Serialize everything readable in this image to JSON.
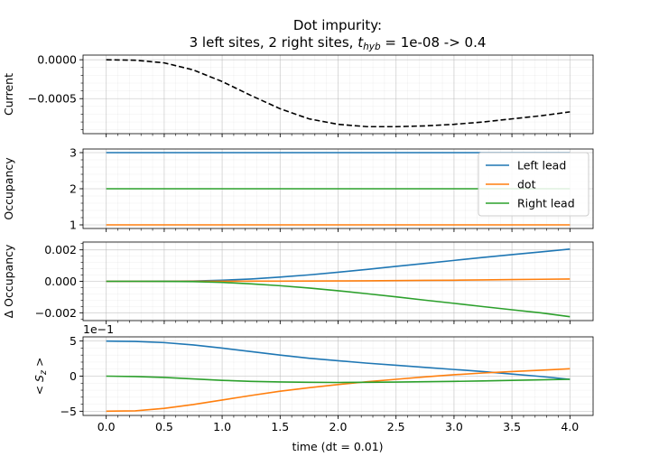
{
  "chart_data": {
    "type": "line",
    "title_line1": "Dot impurity:",
    "title_line2_prefix": "3 left sites, 2 right sites, ",
    "title_var": "t",
    "title_sub": "hyb",
    "title_line2_suffix": " = 1e-08 -> 0.4",
    "xlabel": "time (dt = 0.01)",
    "xlim": [
      -0.2,
      4.2
    ],
    "x_ticks": [
      0.0,
      0.5,
      1.0,
      1.5,
      2.0,
      2.5,
      3.0,
      3.5,
      4.0
    ],
    "x_tick_labels": [
      "0.0",
      "0.5",
      "1.0",
      "1.5",
      "2.0",
      "2.5",
      "3.0",
      "3.5",
      "4.0"
    ],
    "x": [
      0.0,
      0.25,
      0.5,
      0.75,
      1.0,
      1.25,
      1.5,
      1.75,
      2.0,
      2.25,
      2.5,
      2.75,
      3.0,
      3.25,
      3.5,
      3.75,
      4.0
    ],
    "colors": {
      "current": "#000000",
      "left": "#1f77b4",
      "dot": "#ff7f0e",
      "right": "#2ca02c"
    },
    "legend": {
      "placement": "upper-right of occupancy panel",
      "entries": [
        "Left lead",
        "dot",
        "Right lead"
      ]
    },
    "panels": [
      {
        "id": "current",
        "ylabel": "Current",
        "ylim": [
          -0.00095,
          6e-05
        ],
        "y_ticks": [
          0.0,
          -0.0005
        ],
        "y_tick_labels": [
          "0.0000",
          "−0.0005"
        ],
        "series": [
          {
            "key": "current",
            "style": "dashed",
            "values": [
              0.0,
              -6e-06,
              -4e-05,
              -0.00013,
              -0.00028,
              -0.00046,
              -0.00063,
              -0.00076,
              -0.00083,
              -0.00086,
              -0.00086,
              -0.00085,
              -0.00083,
              -0.0008,
              -0.00076,
              -0.00072,
              -0.00067
            ]
          }
        ]
      },
      {
        "id": "occupancy",
        "ylabel": "Occupancy",
        "ylim": [
          0.9,
          3.1
        ],
        "y_ticks": [
          1,
          2,
          3
        ],
        "y_tick_labels": [
          "1",
          "2",
          "3"
        ],
        "series": [
          {
            "key": "left",
            "name": "Left lead",
            "values": [
              3,
              3,
              3,
              3,
              3,
              3,
              3,
              3,
              3,
              3,
              3,
              3,
              3,
              3,
              3,
              3,
              3
            ]
          },
          {
            "key": "dot",
            "name": "dot",
            "values": [
              1,
              1,
              1,
              1,
              1,
              1,
              1,
              1,
              1,
              1,
              1,
              1,
              1,
              1,
              1,
              1,
              1
            ]
          },
          {
            "key": "right",
            "name": "Right lead",
            "values": [
              2,
              2,
              2,
              2,
              2,
              2,
              2,
              2,
              2,
              2,
              2,
              2,
              2,
              2,
              2,
              2,
              2
            ]
          }
        ]
      },
      {
        "id": "delta",
        "ylabel": "Δ Occupancy",
        "ylim": [
          -0.0025,
          0.0025
        ],
        "y_ticks": [
          0.002,
          0.0,
          -0.002
        ],
        "y_tick_labels": [
          "0.002",
          "0.000",
          "−0.002"
        ],
        "series": [
          {
            "key": "left",
            "values": [
              0.0,
              0.0,
              3e-06,
              2e-05,
              7e-05,
              0.00015,
              0.00027,
              0.00041,
              0.00058,
              0.00076,
              0.00095,
              0.00114,
              0.00133,
              0.00152,
              0.0017,
              0.00187,
              0.00205
            ]
          },
          {
            "key": "dot",
            "values": [
              0.0,
              0.0,
              0.0,
              2e-06,
              5e-06,
              8e-06,
              1.2e-05,
              1.8e-05,
              2.5e-05,
              3.3e-05,
              4.5e-05,
              6e-05,
              7e-05,
              9e-05,
              0.00011,
              0.00013,
              0.00015
            ]
          },
          {
            "key": "right",
            "values": [
              0.0,
              0.0,
              -3e-06,
              -2e-05,
              -7e-05,
              -0.00016,
              -0.00028,
              -0.00043,
              -0.0006,
              -0.00079,
              -0.00099,
              -0.0012,
              -0.0014,
              -0.00161,
              -0.00181,
              -0.00201,
              -0.00225
            ]
          }
        ]
      },
      {
        "id": "sz",
        "ylabel_lt": "< ",
        "ylabel_var": "S",
        "ylabel_sub": "z",
        "ylabel_gt": " >",
        "offset_label": "1e−1",
        "ylim": [
          -0.56,
          0.56
        ],
        "y_ticks": [
          0.5,
          0.0,
          -0.5
        ],
        "y_tick_labels": [
          "5",
          "0",
          "−5"
        ],
        "series": [
          {
            "key": "left",
            "values": [
              0.5,
              0.495,
              0.478,
              0.445,
              0.4,
              0.35,
              0.3,
              0.255,
              0.22,
              0.185,
              0.155,
              0.125,
              0.095,
              0.065,
              0.03,
              -0.005,
              -0.045
            ]
          },
          {
            "key": "dot",
            "values": [
              -0.5,
              -0.495,
              -0.46,
              -0.405,
              -0.34,
              -0.275,
              -0.215,
              -0.165,
              -0.12,
              -0.08,
              -0.045,
              -0.01,
              0.02,
              0.045,
              0.065,
              0.085,
              0.105
            ]
          },
          {
            "key": "right",
            "values": [
              0.0,
              -0.005,
              -0.018,
              -0.04,
              -0.06,
              -0.075,
              -0.083,
              -0.088,
              -0.09,
              -0.088,
              -0.085,
              -0.08,
              -0.075,
              -0.068,
              -0.06,
              -0.052,
              -0.045
            ]
          }
        ]
      }
    ]
  }
}
